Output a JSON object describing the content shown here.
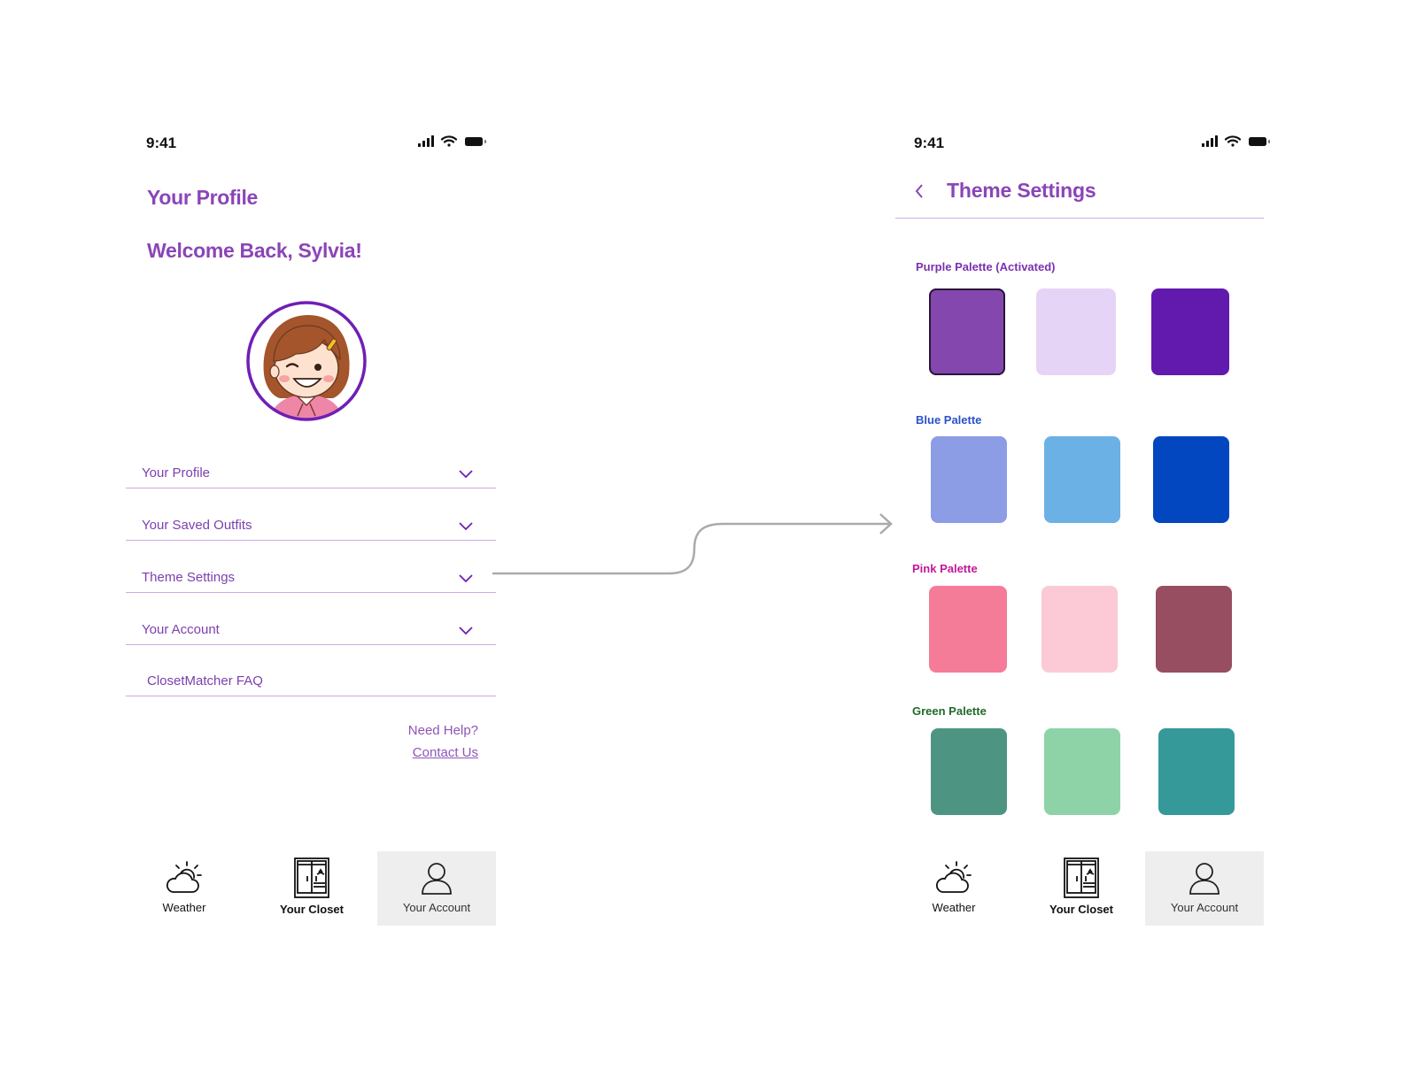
{
  "status_bar": {
    "time": "9:41"
  },
  "profile_screen": {
    "title": "Your Profile",
    "welcome": "Welcome Back, Sylvia!",
    "menu": [
      {
        "label": "Your Profile",
        "has_chevron": true
      },
      {
        "label": "Your Saved Outfits",
        "has_chevron": true
      },
      {
        "label": "Theme Settings",
        "has_chevron": true
      },
      {
        "label": "Your Account",
        "has_chevron": true
      },
      {
        "label": "ClosetMatcher FAQ",
        "has_chevron": false
      }
    ],
    "help": {
      "text": "Need Help?",
      "link": "Contact Us"
    }
  },
  "theme_screen": {
    "title": "Theme Settings",
    "palettes": [
      {
        "label": "Purple Palette (Activated)",
        "label_color": "#7b2fb1",
        "colors": [
          "#8347ae",
          "#e6d4f6",
          "#6219ad"
        ],
        "active_index": 0
      },
      {
        "label": "Blue Palette",
        "label_color": "#2a52c9",
        "colors": [
          "#8c9de6",
          "#6bb1e6",
          "#0247bf"
        ]
      },
      {
        "label": "Pink Palette",
        "label_color": "#c2189a",
        "colors": [
          "#f57c98",
          "#fbcad6",
          "#974e60"
        ]
      },
      {
        "label": "Green Palette",
        "label_color": "#1f6a2a",
        "colors": [
          "#4d9582",
          "#8ed3a8",
          "#35999a"
        ]
      }
    ]
  },
  "tab_bar": {
    "weather": "Weather",
    "closet": "Your Closet",
    "account": "Your Account"
  },
  "colors": {
    "accent": "#8a45b7",
    "divider": "#cfa9e4",
    "active_tab_bg": "#eeeeee",
    "connector": "#aaaaaa"
  },
  "icons": [
    "signal-icon",
    "wifi-icon",
    "battery-icon",
    "chevron-down-icon",
    "back-chevron-icon",
    "weather-icon",
    "closet-icon",
    "account-icon",
    "avatar-illustration"
  ]
}
